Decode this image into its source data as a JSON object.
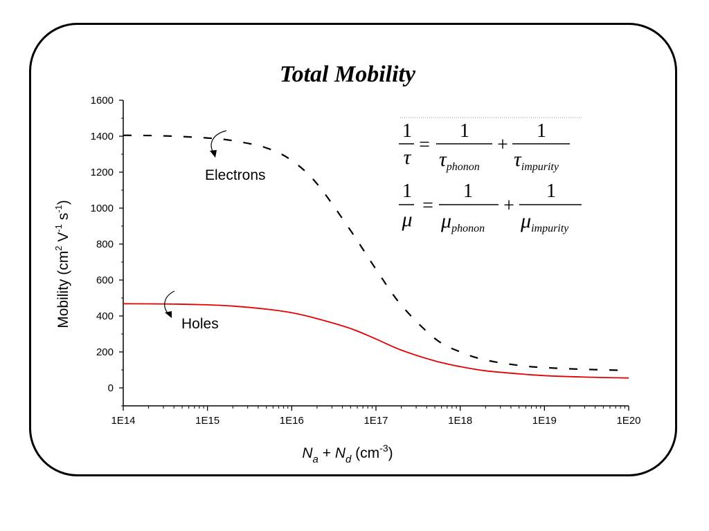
{
  "chart_data": {
    "type": "line",
    "title": "Total Mobility",
    "xscale": "log",
    "xlim": [
      100000000000000.0,
      1e+20
    ],
    "ylim": [
      -100,
      1600
    ],
    "x_tick_labels": [
      "1E14",
      "1E15",
      "1E16",
      "1E17",
      "1E18",
      "1E19",
      "1E20"
    ],
    "x_tick_values": [
      100000000000000.0,
      1000000000000000.0,
      1e+16,
      1e+17,
      1e+18,
      1e+19,
      1e+20
    ],
    "y_tick_values": [
      0,
      200,
      400,
      600,
      800,
      1000,
      1200,
      1400,
      1600
    ],
    "y_tick_labels": [
      "0",
      "200",
      "400",
      "600",
      "800",
      "1000",
      "1200",
      "1400",
      "1600"
    ],
    "xlabel": {
      "base1": "N",
      "sub1": "a",
      "mid": " + ",
      "base2": "N",
      "sub2": "d",
      "unit": " (cm",
      "exp": "-3",
      "close": ")"
    },
    "ylabel": {
      "text1": "Mobility (cm",
      "sup1": "2",
      "text2": " V",
      "sup2": "-1",
      "text3": " s",
      "sup3": "-1",
      "text4": ")"
    },
    "series": [
      {
        "name": "Electrons",
        "style": "dashed",
        "color": "#000000",
        "x": [
          100000000000000.0,
          300000000000000.0,
          1000000000000000.0,
          2000000000000000.0,
          5000000000000000.0,
          1e+16,
          2e+16,
          5e+16,
          1e+17,
          2e+17,
          5e+17,
          1e+18,
          2e+18,
          5e+18,
          1e+19,
          3e+19,
          1e+20
        ],
        "y": [
          1405,
          1402,
          1390,
          1375,
          1335,
          1265,
          1135,
          875,
          660,
          460,
          275,
          200,
          155,
          125,
          113,
          103,
          97
        ]
      },
      {
        "name": "Holes",
        "style": "solid",
        "color": "#e00000",
        "x": [
          100000000000000.0,
          300000000000000.0,
          1000000000000000.0,
          2000000000000000.0,
          5000000000000000.0,
          1e+16,
          2e+16,
          5e+16,
          1e+17,
          2e+17,
          5e+17,
          1e+18,
          2e+18,
          5e+18,
          1e+19,
          3e+19,
          1e+20
        ],
        "y": [
          468,
          467,
          462,
          455,
          438,
          418,
          385,
          330,
          272,
          210,
          150,
          118,
          95,
          78,
          68,
          60,
          55
        ]
      }
    ],
    "annotations": {
      "electrons_label": "Electrons",
      "holes_label": "Holes"
    },
    "equations": {
      "one": "1",
      "equals": "=",
      "plus": "+",
      "tau": "τ",
      "mu": "μ",
      "phonon": "phonon",
      "impurity": "impurity"
    },
    "grid": false,
    "legend": "none"
  }
}
